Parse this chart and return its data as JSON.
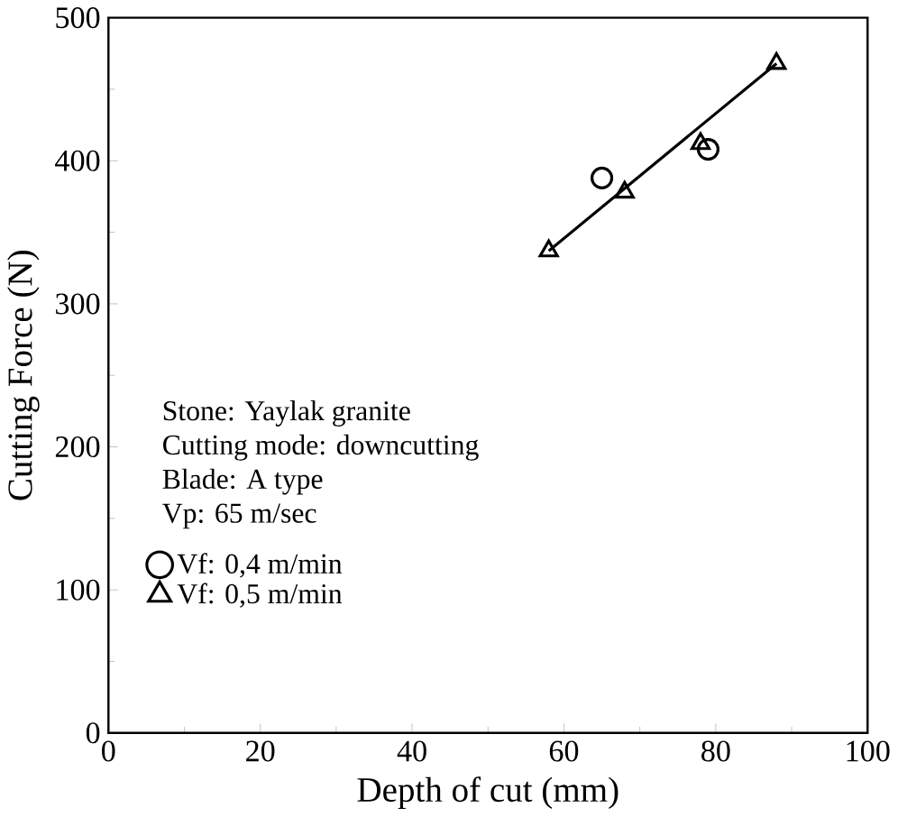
{
  "chart_data": {
    "type": "scatter",
    "xlabel": "Depth of cut (mm)",
    "ylabel": "Cutting Force (N)",
    "xlim": [
      0,
      100
    ],
    "ylim": [
      0,
      500
    ],
    "xticks": [
      0,
      20,
      40,
      60,
      80,
      100
    ],
    "yticks": [
      0,
      100,
      200,
      300,
      400,
      500
    ],
    "grid": false,
    "legend": "left",
    "annotations": [
      "Stone: Yaylak granite",
      "Cutting mode: downcutting",
      "Blade: A type",
      "Vp: 65 m/sec"
    ],
    "series": [
      {
        "name": "Vf: 0,4 m/min",
        "color": "#000000",
        "marker": "circle",
        "x": [
          65,
          79
        ],
        "values": [
          388,
          408
        ]
      },
      {
        "name": "Vf: 0,5 m/min",
        "color": "#000000",
        "marker": "triangle",
        "x": [
          58,
          68,
          78,
          88
        ],
        "values": [
          337,
          378,
          412,
          468
        ]
      },
      {
        "type": "line",
        "color": "#000000",
        "marker": "none",
        "x": [
          58,
          88
        ],
        "values": [
          337,
          468
        ]
      }
    ]
  }
}
